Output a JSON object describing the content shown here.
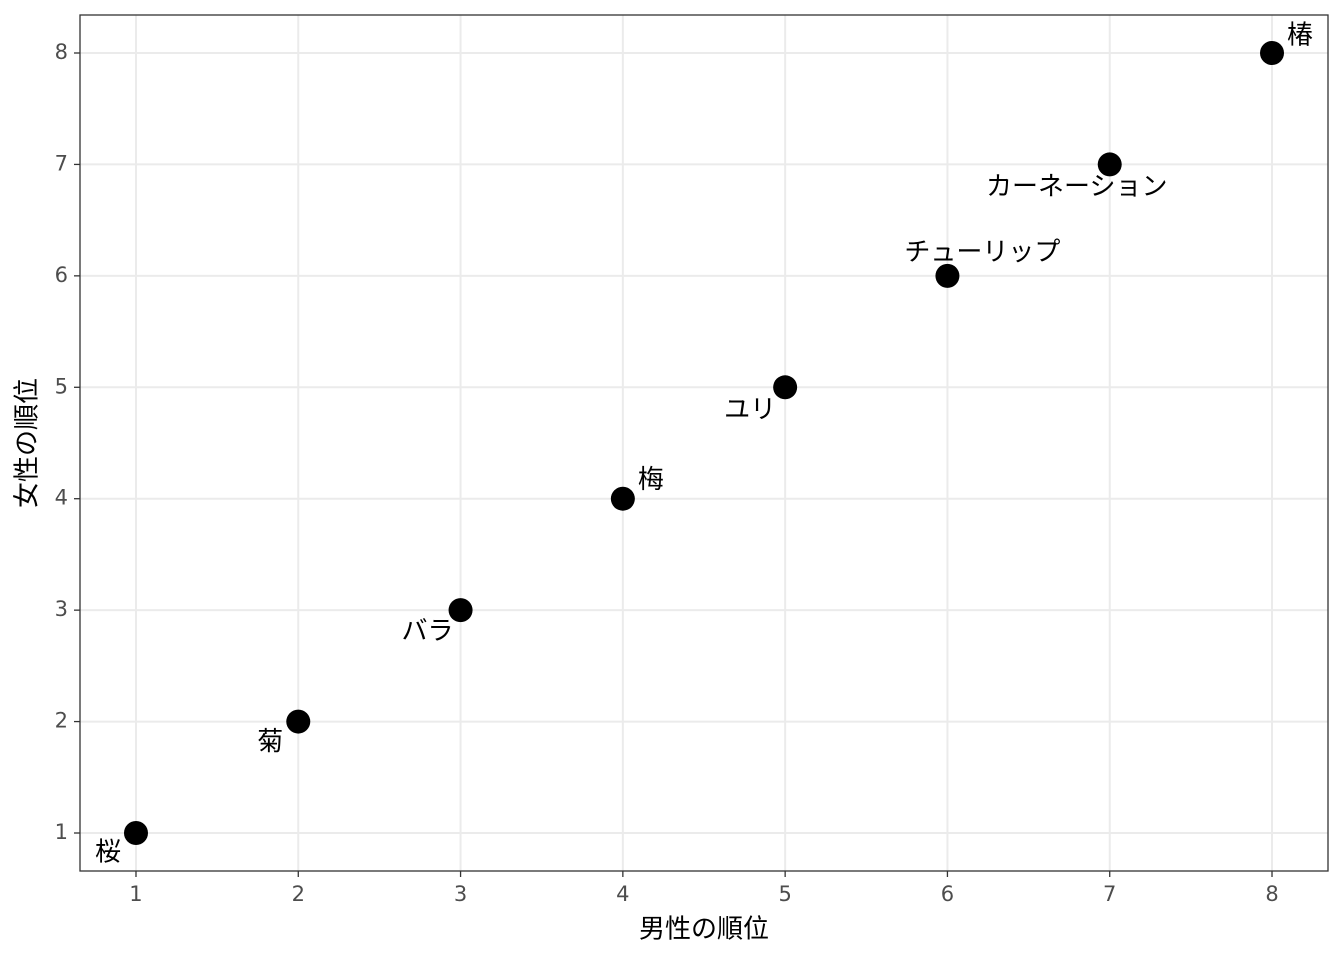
{
  "chart_data": {
    "type": "scatter",
    "x_label": "男性の順位",
    "y_label": "女性の順位",
    "labels": [
      "桜",
      "菊",
      "バラ",
      "梅",
      "ユリ",
      "チューリップ",
      "カーネーション",
      "椿"
    ],
    "x": [
      1,
      2,
      3,
      4,
      5,
      6,
      7,
      8
    ],
    "values": [
      1,
      2,
      3,
      4,
      5,
      6,
      7,
      8
    ],
    "color": "#000000",
    "xlim": [
      0.655,
      8.345
    ],
    "ylim": [
      0.659,
      8.341
    ],
    "xticks": [
      1,
      2,
      3,
      4,
      5,
      6,
      7,
      8
    ],
    "yticks": [
      1,
      2,
      3,
      4,
      5,
      6,
      7,
      8
    ],
    "grid": true
  }
}
